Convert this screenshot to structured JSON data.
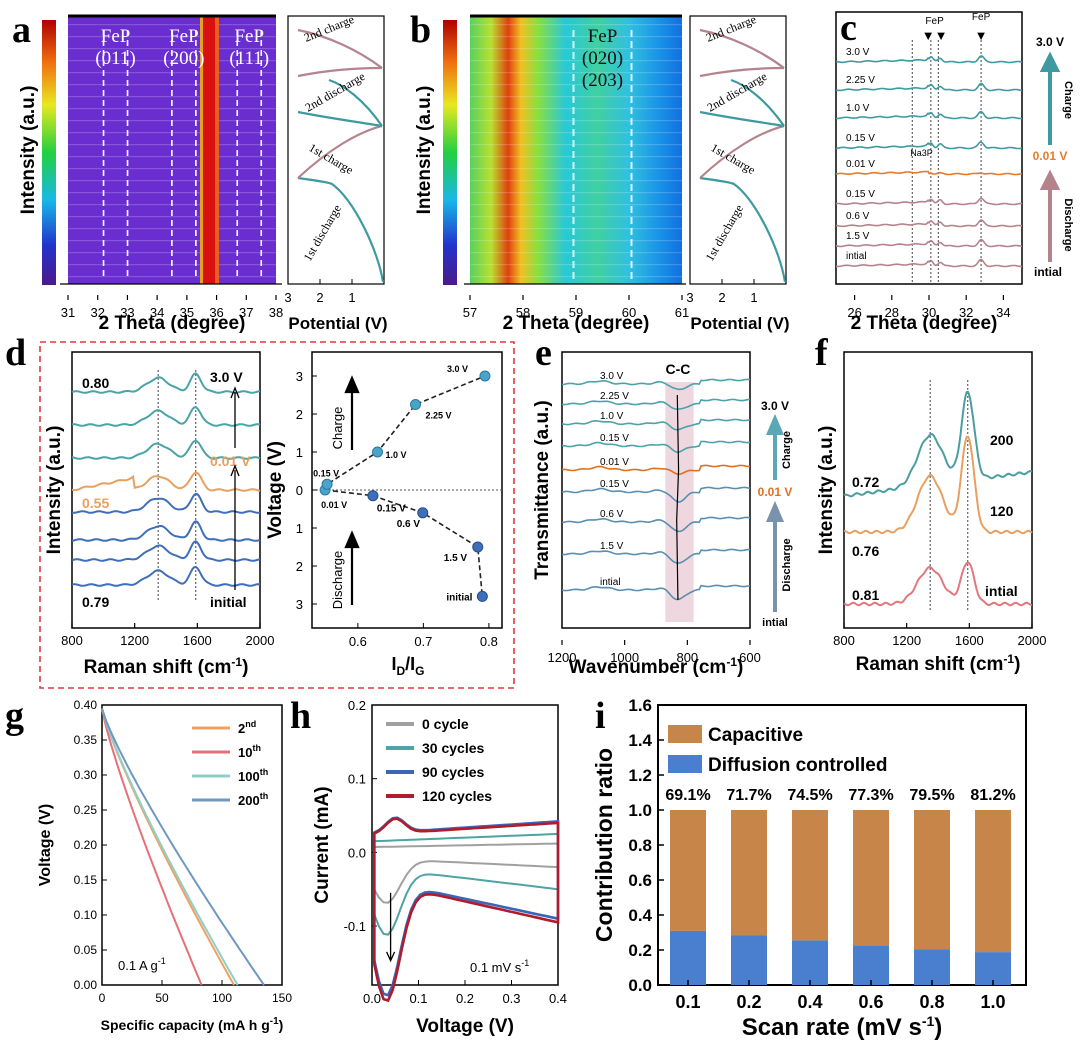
{
  "colors": {
    "orange": "#e8a65d",
    "teal": "#3d9aa0",
    "blue": "#3e6fb8",
    "red": "#b01c2e",
    "rose": "#b5838c",
    "grey": "#9c9c9c",
    "dash": "#e03a3a"
  },
  "chart_data": [
    {
      "panel": "a",
      "type": "heatmap",
      "x_label": "2 Theta (degree)",
      "x_ticks": [
        "31",
        "32",
        "33",
        "34",
        "35",
        "36",
        "37",
        "38"
      ],
      "xlim": [
        31,
        38
      ],
      "y_label": "Intensity (a.u.)",
      "peaks": [
        {
          "label": [
            "FeP",
            "(011)"
          ],
          "x": 32.6
        },
        {
          "label": [
            "FeP",
            "(200)"
          ],
          "x": 34.9
        },
        {
          "label": [
            "FeP",
            "(111)"
          ],
          "x": 37.1
        }
      ],
      "strong_band": 35.9,
      "potential": {
        "x_label": "Potential (V)",
        "x_ticks": [
          "3",
          "2",
          "1"
        ],
        "labels": [
          "2nd charge",
          "2nd discharge",
          "1st charge",
          "1st discharge"
        ]
      }
    },
    {
      "panel": "b",
      "type": "heatmap",
      "x_label": "2 Theta (degree)",
      "x_ticks": [
        "57",
        "58",
        "59",
        "60",
        "61"
      ],
      "xlim": [
        57,
        61
      ],
      "y_label": "Intensity (a.u.)",
      "peaks": [
        {
          "label": [
            "FeP",
            "(020)",
            "(203)"
          ],
          "x": 59.5
        }
      ],
      "potential": {
        "x_label": "Potential (V)",
        "x_ticks": [
          "3",
          "2",
          "1"
        ],
        "labels": [
          "2nd charge",
          "2nd discharge",
          "1st charge",
          "1st discharge"
        ]
      }
    },
    {
      "panel": "c",
      "type": "line",
      "x_label": "2 Theta (degree)",
      "x_ticks": [
        "26",
        "28",
        "30",
        "32",
        "34"
      ],
      "xlim": [
        25,
        35
      ],
      "curves": [
        "3.0 V",
        "2.25 V",
        "1.0 V",
        "0.15 V",
        "0.01 V",
        "0.15 V",
        "0.6 V",
        "1.5 V",
        "intial"
      ],
      "peak_labels": [
        "FeP",
        "FeP",
        "Na3P"
      ],
      "side": {
        "top": "3.0 V",
        "charge": "Charge",
        "mid": "0.01 V",
        "discharge": "Discharge",
        "bottom": "intial"
      }
    },
    {
      "panel": "d",
      "type": "line",
      "x_label": "Raman shift (cm-1)",
      "x_ticks": [
        "800",
        "1200",
        "1600",
        "2000"
      ],
      "xlim": [
        800,
        2000
      ],
      "y_label": "Intensity (a.u.)",
      "labels": {
        "top": "0.80",
        "mid": "0.55",
        "bottom": "0.79",
        "v_top": "3.0 V",
        "v_mid": "0.01 V",
        "v_bottom": "initial"
      },
      "bands": [
        1350,
        1590
      ]
    },
    {
      "panel": "d-right",
      "type": "scatter",
      "x_label": "ID/IG",
      "x_ticks": [
        "0.6",
        "0.7",
        "0.8"
      ],
      "xlim": [
        0.53,
        0.82
      ],
      "y_label": "Voltage (V)",
      "y_ticks": [
        "3",
        "2",
        "1",
        "0",
        "1",
        "2",
        "3"
      ],
      "charge": [
        {
          "x": 0.55,
          "y": 0.0,
          "label": "0.01 V"
        },
        {
          "x": 0.553,
          "y": 0.15,
          "label": "0.15 V"
        },
        {
          "x": 0.63,
          "y": 1.0,
          "label": "1.0 V"
        },
        {
          "x": 0.688,
          "y": 2.25,
          "label": "2.25 V"
        },
        {
          "x": 0.794,
          "y": 3.0,
          "label": "3.0 V"
        }
      ],
      "discharge": [
        {
          "x": 0.55,
          "y": 0.0
        },
        {
          "x": 0.623,
          "y": -0.15,
          "label": "0.15 V"
        },
        {
          "x": 0.699,
          "y": -0.6,
          "label": "0.6 V"
        },
        {
          "x": 0.783,
          "y": -1.5,
          "label": "1.5 V"
        },
        {
          "x": 0.79,
          "y": -2.8,
          "label": "initial"
        }
      ],
      "arrow_labels": [
        "Charge",
        "Discharge"
      ]
    },
    {
      "panel": "e",
      "type": "line",
      "x_label": "Wavenumber (cm-1)",
      "x_ticks": [
        "1200",
        "1000",
        "800",
        "600"
      ],
      "xlim": [
        600,
        1200
      ],
      "y_label": "Transmittance (a.u.)",
      "curves": [
        "3.0 V",
        "2.25 V",
        "1.0 V",
        "0.15 V",
        "0.01 V",
        "0.15 V",
        "0.6 V",
        "1.5 V",
        "intial"
      ],
      "band_label": "C-C",
      "side": {
        "top": "3.0 V",
        "charge": "Charge",
        "mid": "0.01 V",
        "discharge": "Discharge",
        "bottom": "intial"
      }
    },
    {
      "panel": "f",
      "type": "line",
      "x_label": "Raman shift (cm-1)",
      "x_ticks": [
        "800",
        "1200",
        "1600",
        "2000"
      ],
      "xlim": [
        800,
        2000
      ],
      "y_label": "Intensity (a.u.)",
      "series": [
        {
          "name": "200",
          "ratio": "0.72"
        },
        {
          "name": "120",
          "ratio": "0.76"
        },
        {
          "name": "intial",
          "ratio": "0.81"
        }
      ]
    },
    {
      "panel": "g",
      "type": "line",
      "x_label": "Specific capacity (mA h g-1)",
      "x_ticks": [
        "0",
        "50",
        "100",
        "150"
      ],
      "xlim": [
        0,
        150
      ],
      "y_label": "Voltage (V)",
      "y_ticks": [
        "0.00",
        "0.05",
        "0.10",
        "0.15",
        "0.20",
        "0.25",
        "0.30",
        "0.35",
        "0.40"
      ],
      "ylim": [
        0,
        0.4
      ],
      "annotation": "0.1 A g-1",
      "series": [
        {
          "name": "2nd",
          "end_capacity": 110,
          "sup": "nd",
          "base": "2"
        },
        {
          "name": "10th",
          "end_capacity": 83,
          "sup": "th",
          "base": "10"
        },
        {
          "name": "100th",
          "end_capacity": 113,
          "sup": "th",
          "base": "100"
        },
        {
          "name": "200th",
          "end_capacity": 135,
          "sup": "th",
          "base": "200"
        }
      ]
    },
    {
      "panel": "h",
      "type": "line",
      "x_label": "Voltage (V)",
      "x_ticks": [
        "0.0",
        "0.1",
        "0.2",
        "0.3",
        "0.4"
      ],
      "xlim": [
        0,
        0.4
      ],
      "y_label": "Current (mA)",
      "y_ticks": [
        "0.2",
        "0.1",
        "0.0",
        "-0.1"
      ],
      "ylim": [
        -0.18,
        0.2
      ],
      "annotation": "0.1 mV s-1",
      "series": [
        {
          "name": "0 cycle"
        },
        {
          "name": "30 cycles"
        },
        {
          "name": "90 cycles"
        },
        {
          "name": "120 cycles"
        }
      ]
    },
    {
      "panel": "i",
      "type": "bar",
      "x_label": "Scan rate (mV s-1)",
      "categories": [
        "0.1",
        "0.2",
        "0.4",
        "0.6",
        "0.8",
        "1.0"
      ],
      "y_label": "Contribution ratio",
      "y_ticks": [
        "0.0",
        "0.2",
        "0.4",
        "0.6",
        "0.8",
        "1.0",
        "1.2",
        "1.4",
        "1.6"
      ],
      "ylim": [
        0,
        1.6
      ],
      "series": [
        {
          "name": "Capacitive",
          "values": [
            0.691,
            0.717,
            0.745,
            0.773,
            0.795,
            0.812
          ]
        },
        {
          "name": "Diffusion controlled",
          "values": [
            0.309,
            0.283,
            0.255,
            0.227,
            0.205,
            0.188
          ]
        }
      ],
      "percent_labels": [
        "69.1%",
        "71.7%",
        "74.5%",
        "77.3%",
        "79.5%",
        "81.2%"
      ]
    }
  ],
  "panel_letters": [
    "a",
    "b",
    "c",
    "d",
    "e",
    "f",
    "g",
    "h",
    "i"
  ]
}
